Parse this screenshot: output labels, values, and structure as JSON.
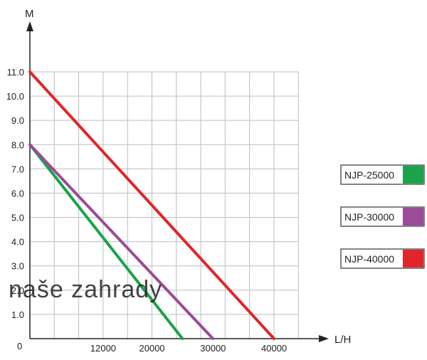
{
  "chart_data": {
    "type": "line",
    "ylabel": "M",
    "xlabel": "L/H",
    "origin_label": "0",
    "xlim": [
      0,
      44000
    ],
    "ylim": [
      0,
      11
    ],
    "x_grid_step": 4000,
    "y_ticks": [
      "1.0",
      "2.0",
      "3.0",
      "4.0",
      "5.0",
      "6.0",
      "7.0",
      "8.0",
      "9.0",
      "10.0",
      "11.0"
    ],
    "y_tick_values": [
      1,
      2,
      3,
      4,
      5,
      6,
      7,
      8,
      9,
      10,
      11
    ],
    "x_ticks": [
      "12000",
      "20000",
      "30000",
      "40000"
    ],
    "x_tick_values": [
      12000,
      20000,
      30000,
      40000
    ],
    "grid": true,
    "legend_position": "right",
    "series": [
      {
        "name": "NJP-25000",
        "color": "#1aa34a",
        "x": [
          0,
          25000
        ],
        "y": [
          8.0,
          0
        ]
      },
      {
        "name": "NJP-30000",
        "color": "#9b4b97",
        "x": [
          0,
          30000
        ],
        "y": [
          8.0,
          0
        ]
      },
      {
        "name": "NJP-40000",
        "color": "#e0262b",
        "x": [
          0,
          40000
        ],
        "y": [
          11.0,
          0
        ]
      }
    ]
  },
  "watermark": "naše zahrady"
}
